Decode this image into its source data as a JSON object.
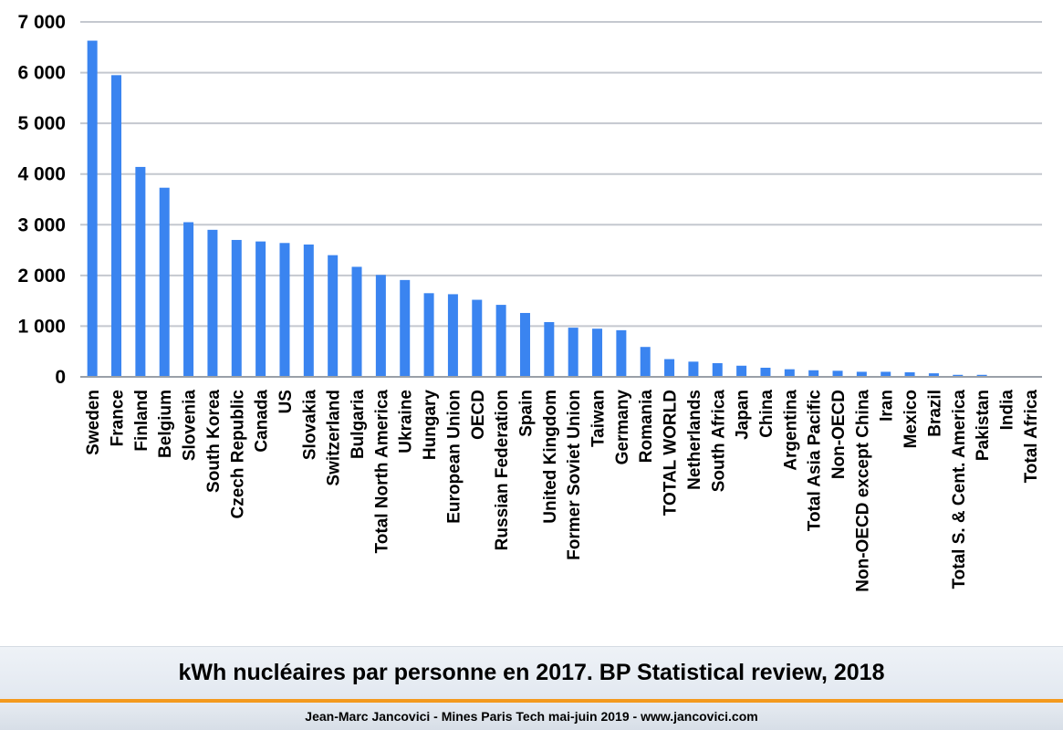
{
  "caption": "kWh nucléaires par personne en 2017. BP Statistical review, 2018",
  "footer": "Jean-Marc Jancovici - Mines Paris Tech mai-juin 2019 - www.jancovici.com",
  "colors": {
    "bar": "#3a84f0",
    "grid": "#c4c8cf",
    "rule": "#f39a1e"
  },
  "chart_data": {
    "type": "bar",
    "title": "",
    "xlabel": "",
    "ylabel": "",
    "ylim": [
      0,
      7000
    ],
    "yticks": [
      0,
      1000,
      2000,
      3000,
      4000,
      5000,
      6000,
      7000
    ],
    "ytick_labels": [
      "0",
      "1 000",
      "2 000",
      "3 000",
      "4 000",
      "5 000",
      "6 000",
      "7 000"
    ],
    "grid": true,
    "legend": "none",
    "categories": [
      "Sweden",
      "France",
      "Finland",
      "Belgium",
      "Slovenia",
      "South Korea",
      "Czech Republic",
      "Canada",
      "US",
      "Slovakia",
      "Switzerland",
      "Bulgaria",
      "Total North America",
      "Ukraine",
      "Hungary",
      "European Union",
      "OECD",
      "Russian Federation",
      "Spain",
      "United Kingdom",
      "Former Soviet Union",
      "Taiwan",
      "Germany",
      "Romania",
      "TOTAL WORLD",
      "Netherlands",
      "South Africa",
      "Japan",
      "China",
      "Argentina",
      "Total Asia Pacific",
      "Non-OECD",
      "Non-OECD except China",
      "Iran",
      "Mexico",
      "Brazil",
      "Total S. & Cent. America",
      "Pakistan",
      "India",
      "Total Africa"
    ],
    "values": [
      6630,
      5950,
      4140,
      3730,
      3050,
      2900,
      2700,
      2670,
      2640,
      2610,
      2400,
      2170,
      2010,
      1910,
      1650,
      1630,
      1520,
      1420,
      1260,
      1080,
      970,
      950,
      920,
      590,
      350,
      300,
      270,
      220,
      180,
      150,
      130,
      120,
      100,
      100,
      90,
      70,
      40,
      40,
      15,
      10
    ]
  }
}
